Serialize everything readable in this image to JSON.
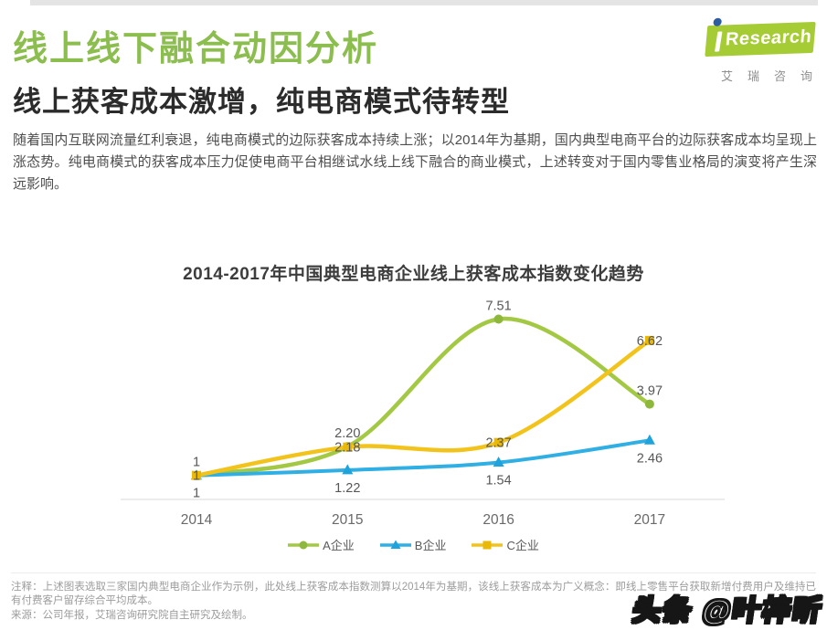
{
  "header": {
    "title": "线上线下融合动因分析",
    "title_color": "#8cbd4f",
    "subtitle": "线上获客成本激增，纯电商模式待转型",
    "logo": {
      "name": "iResearch",
      "text": "Research",
      "caption": "艾瑞咨询",
      "plate_green": "#a6cc35",
      "dot_blue": "#2e5d9f"
    }
  },
  "intro": {
    "text": "随着国内互联网流量红利衰退，纯电商模式的边际获客成本持续上涨；以2014年为基期，国内典型电商平台的边际获客成本均呈现上涨态势。纯电商模式的获客成本压力促使电商平台相继试水线上线下融合的商业模式，上述转变对于国内零售业格局的演变将产生深远影响。"
  },
  "chart_data": {
    "type": "line",
    "title": "2014-2017年中国典型电商企业线上获客成本指数变化趋势",
    "categories": [
      "2014",
      "2015",
      "2016",
      "2017"
    ],
    "series": [
      {
        "name": "A企业",
        "color": "#a3c944",
        "marker_color": "#8eb83b",
        "marker": "circle",
        "values": [
          1,
          2.2,
          7.51,
          3.97
        ],
        "labels": [
          "1",
          "2.20",
          "7.51",
          "3.97"
        ],
        "label_position": "above"
      },
      {
        "name": "B企业",
        "color": "#2fafe3",
        "marker_color": "#1ea3dc",
        "marker": "triangle",
        "values": [
          1,
          1.22,
          1.54,
          2.46
        ],
        "labels": [
          "1",
          "1.22",
          "1.54",
          "2.46"
        ],
        "label_position": "below"
      },
      {
        "name": "C企业",
        "color": "#f2c31b",
        "marker_color": "#eab908",
        "marker": "square",
        "values": [
          1,
          2.18,
          2.37,
          6.62
        ],
        "labels": [
          "1",
          "2.18",
          "2.37",
          "6.62"
        ],
        "label_position": "center"
      }
    ],
    "xlabel": "",
    "ylabel": "",
    "ylim": [
      0,
      8
    ],
    "grid": false,
    "legend_position": "bottom",
    "axis_color": "#d8d8d8",
    "tick_color": "#696969",
    "data_label_color": "#575757"
  },
  "footer": {
    "note": "注释：上述图表选取三家国内典型电商企业作为示例，此处线上获客成本指数测算以2014年为基期，该线上获客成本为广义概念：即线上零售平台获取新增付费用户及维持已有付费客户留存综合平均成本。",
    "source": "来源：公司年报，艾瑞咨询研究院自主研究及绘制。",
    "watermark": "头条 @叶梓昕"
  }
}
